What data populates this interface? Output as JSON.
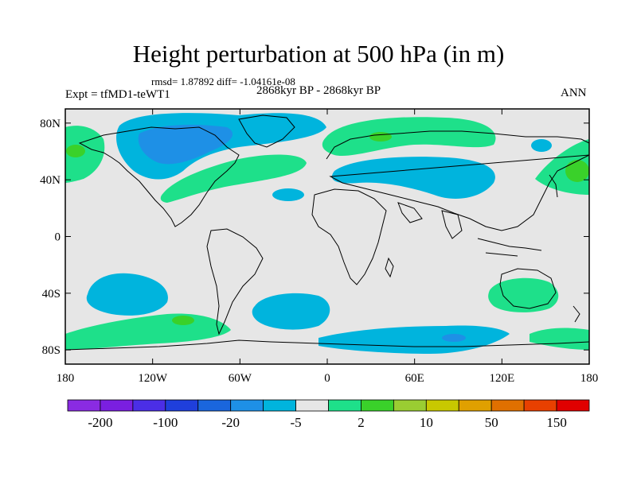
{
  "figure": {
    "title": "Height perturbation at 500 hPa (in m)",
    "stats": "rmsd= 1.87892 diff= -1.04161e-08",
    "expt": "Expt = tfMD1-teWT1",
    "period": "2868kyr BP - 2868kyr BP",
    "season": "ANN"
  },
  "axes": {
    "y_ticks": [
      {
        "label": "80N",
        "value": 80
      },
      {
        "label": "40N",
        "value": 40
      },
      {
        "label": "0",
        "value": 0
      },
      {
        "label": "40S",
        "value": -40
      },
      {
        "label": "80S",
        "value": -80
      }
    ],
    "x_ticks": [
      {
        "label": "180",
        "value": -180
      },
      {
        "label": "120W",
        "value": -120
      },
      {
        "label": "60W",
        "value": -60
      },
      {
        "label": "0",
        "value": 0
      },
      {
        "label": "60E",
        "value": 60
      },
      {
        "label": "120E",
        "value": 120
      },
      {
        "label": "180",
        "value": 180
      }
    ],
    "lon_range": [
      -180,
      180
    ],
    "lat_range": [
      -90,
      90
    ]
  },
  "colorbar": {
    "labels": [
      "-200",
      "-100",
      "-20",
      "-5",
      "2",
      "10",
      "50",
      "150"
    ],
    "colors": [
      "#8a2be2",
      "#7a1fe0",
      "#4b2ee6",
      "#1f3fdc",
      "#1a66dd",
      "#1e90e6",
      "#00b4dd",
      "#e6e6e6",
      "#1ee08a",
      "#3ad12a",
      "#9acd32",
      "#c8c800",
      "#e0a000",
      "#e07000",
      "#e84000",
      "#e00000"
    ]
  },
  "map_colors": {
    "background": "#e6e6e6",
    "light_green": "#1ee08a",
    "green": "#3ad12a",
    "light_blue": "#00b4dd",
    "blue": "#1e90e6"
  }
}
